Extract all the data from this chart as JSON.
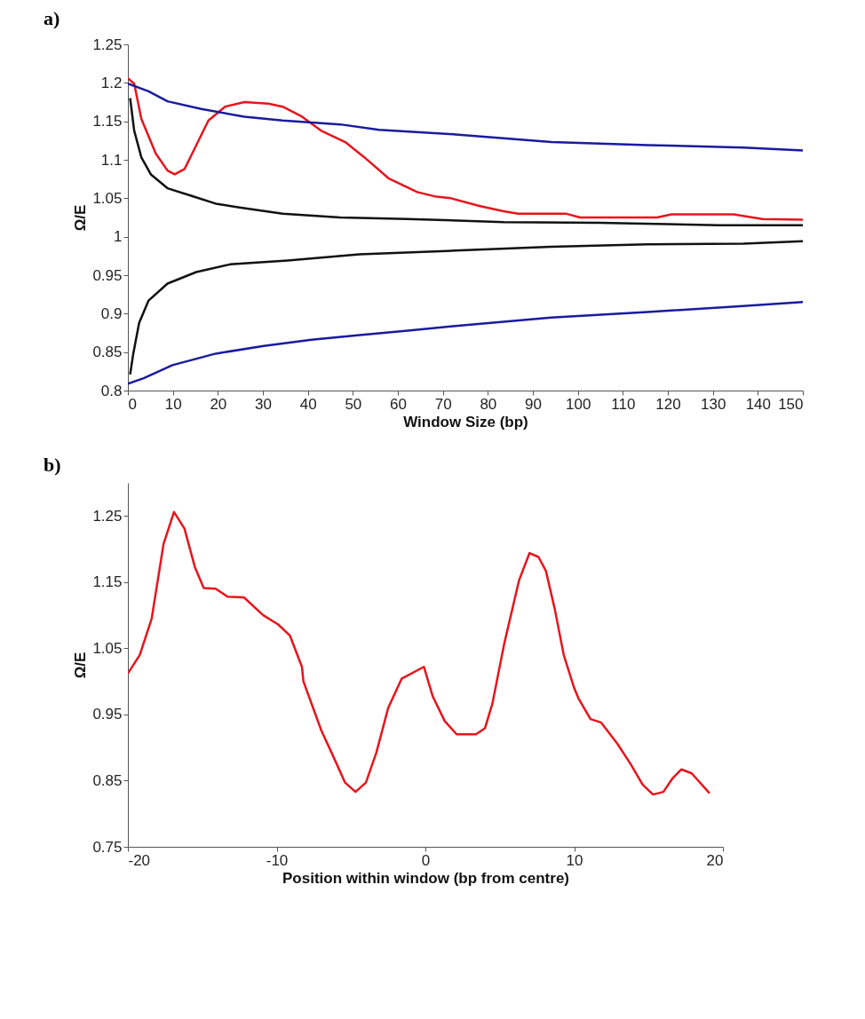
{
  "chart_data": [
    {
      "type": "line",
      "title": "a)",
      "xlabel": "Window Size (bp)",
      "ylabel": "Ω/E",
      "xlim": [
        0,
        150
      ],
      "xticks": [
        0,
        10,
        20,
        30,
        40,
        50,
        60,
        70,
        80,
        90,
        100,
        110,
        120,
        130,
        140,
        150
      ],
      "ylim": [
        0.8,
        1.25
      ],
      "yticks": [
        0.8,
        0.85,
        0.9,
        0.95,
        1,
        1.05,
        1.1,
        1.15,
        1.2,
        1.25
      ],
      "series": [
        {
          "color": "#e8141c",
          "x": [
            0,
            1.4,
            3.0,
            6.2,
            8.8,
            10.4,
            12.6,
            14.7,
            17.9,
            21.6,
            25.9,
            31.2,
            34.4,
            38.7,
            42.9,
            48.3,
            52.6,
            57.9,
            64.3,
            68.5,
            71.8,
            78.1,
            83.5,
            86.7,
            97.3,
            100.5,
            117.6,
            120.8,
            134.6,
            141.0,
            150
          ],
          "values": [
            1.206,
            1.199,
            1.153,
            1.108,
            1.086,
            1.081,
            1.088,
            1.113,
            1.151,
            1.169,
            1.175,
            1.173,
            1.169,
            1.156,
            1.138,
            1.123,
            1.103,
            1.076,
            1.058,
            1.052,
            1.05,
            1.04,
            1.033,
            1.03,
            1.03,
            1.025,
            1.025,
            1.029,
            1.029,
            1.023,
            1.022
          ]
        },
        {
          "color": "#1a1aa0",
          "x": [
            0,
            4.6,
            8.8,
            16.3,
            25.9,
            34.4,
            47.2,
            55.8,
            72.8,
            94.1,
            115.5,
            136.8,
            150
          ],
          "values": [
            1.199,
            1.189,
            1.176,
            1.166,
            1.156,
            1.151,
            1.146,
            1.139,
            1.133,
            1.123,
            1.119,
            1.116,
            1.112
          ]
        },
        {
          "color": "#111111",
          "x": [
            0.5,
            1.4,
            3.0,
            5.1,
            8.8,
            14.2,
            19.5,
            24.8,
            34.4,
            47.2,
            62.2,
            83.5,
            104.8,
            131.4,
            150
          ],
          "values": [
            1.18,
            1.138,
            1.103,
            1.081,
            1.063,
            1.053,
            1.043,
            1.038,
            1.03,
            1.025,
            1.023,
            1.019,
            1.018,
            1.015,
            1.015
          ]
        },
        {
          "color": "#111111",
          "x": [
            0.5,
            1.2,
            2.5,
            4.6,
            8.8,
            15.2,
            22.7,
            35.5,
            51.5,
            72.8,
            94.1,
            115.5,
            136.8,
            150
          ],
          "values": [
            0.821,
            0.848,
            0.888,
            0.917,
            0.939,
            0.954,
            0.964,
            0.969,
            0.977,
            0.982,
            0.987,
            0.99,
            0.991,
            0.994
          ]
        },
        {
          "color": "#1a1aa0",
          "x": [
            0,
            3.5,
            9.9,
            19.5,
            30.2,
            40.8,
            51.5,
            62.2,
            72.8,
            94.1,
            115.5,
            136.8,
            150
          ],
          "values": [
            0.809,
            0.816,
            0.833,
            0.848,
            0.858,
            0.866,
            0.872,
            0.878,
            0.884,
            0.895,
            0.902,
            0.91,
            0.915
          ]
        }
      ]
    },
    {
      "type": "line",
      "title": "b)",
      "xlabel": "Position within window  (bp from centre)",
      "ylabel": "Ω/E",
      "xlim": [
        -20,
        20
      ],
      "xticks": [
        -20,
        -10,
        0,
        10,
        20
      ],
      "ylim": [
        0.75,
        1.3
      ],
      "yticks": [
        0.75,
        0.85,
        0.95,
        1.05,
        1.15,
        1.25
      ],
      "series": [
        {
          "color": "#e8141c",
          "x": [
            -20,
            -19.2,
            -18.4,
            -17.6,
            -16.9,
            -16.2,
            -15.5,
            -14.9,
            -14.1,
            -13.3,
            -12.2,
            -10.9,
            -9.9,
            -9.1,
            -8.3,
            -8.2,
            -7.0,
            -6.2,
            -5.4,
            -4.7,
            -4.0,
            -3.3,
            -2.5,
            -1.6,
            -0.1,
            0.5,
            1.3,
            2.1,
            3.4,
            4.0,
            4.5,
            5.3,
            6.3,
            7.0,
            7.6,
            8.1,
            8.7,
            9.3,
            10.0,
            10.3,
            11.1,
            11.8,
            12.9,
            13.8,
            14.6,
            15.3,
            16.0,
            16.6,
            17.2,
            17.9,
            19.1
          ],
          "values": [
            1.012,
            1.04,
            1.095,
            1.208,
            1.256,
            1.231,
            1.173,
            1.141,
            1.14,
            1.128,
            1.127,
            1.1,
            1.086,
            1.069,
            1.022,
            1.0,
            0.926,
            0.887,
            0.847,
            0.833,
            0.847,
            0.892,
            0.96,
            1.004,
            1.022,
            0.977,
            0.94,
            0.92,
            0.92,
            0.929,
            0.966,
            1.057,
            1.153,
            1.194,
            1.188,
            1.167,
            1.109,
            1.04,
            0.99,
            0.974,
            0.943,
            0.938,
            0.906,
            0.875,
            0.844,
            0.829,
            0.833,
            0.853,
            0.867,
            0.861,
            0.831
          ]
        }
      ]
    }
  ]
}
